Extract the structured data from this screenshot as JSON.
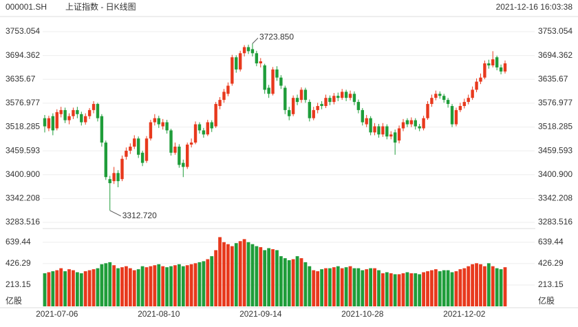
{
  "header": {
    "symbol": "000001.SH",
    "name": "上证指数 - 日K线图",
    "timestamp": "2021-12-16 16:03:38"
  },
  "chart_data": {
    "type": "candlestick",
    "categories": [
      null,
      null,
      null,
      "2021-07-06",
      null,
      null,
      null,
      null,
      null,
      null,
      null,
      null,
      null,
      null,
      null,
      null,
      null,
      null,
      null,
      null,
      null,
      null,
      null,
      null,
      null,
      null,
      null,
      null,
      "2021-08-10",
      null,
      null,
      null,
      null,
      null,
      null,
      null,
      null,
      null,
      null,
      null,
      null,
      null,
      null,
      null,
      null,
      null,
      null,
      null,
      null,
      null,
      null,
      null,
      null,
      "2021-09-14",
      null,
      null,
      null,
      null,
      null,
      null,
      null,
      null,
      null,
      null,
      null,
      null,
      null,
      null,
      null,
      null,
      null,
      null,
      null,
      null,
      null,
      null,
      null,
      null,
      "2021-10-28",
      null,
      null,
      null,
      null,
      null,
      null,
      null,
      null,
      null,
      null,
      null,
      null,
      null,
      null,
      null,
      null,
      null,
      null,
      null,
      null,
      null,
      null,
      null,
      null,
      "2021-12-02",
      null,
      null,
      null,
      null,
      null,
      null,
      null,
      null,
      null,
      null
    ],
    "open": [
      3540,
      3515,
      3545,
      3515,
      3550,
      3560,
      3535,
      3545,
      3560,
      3550,
      3530,
      3545,
      3560,
      3575,
      3545,
      3480,
      3390,
      3385,
      3405,
      3390,
      3445,
      3460,
      3470,
      3490,
      3455,
      3435,
      3490,
      3530,
      3540,
      3520,
      3530,
      3510,
      3455,
      3470,
      3430,
      3420,
      3475,
      3480,
      3525,
      3510,
      3500,
      3530,
      3520,
      3570,
      3585,
      3600,
      3625,
      3690,
      3660,
      3700,
      3715,
      3710,
      3700,
      3675,
      3670,
      3615,
      3600,
      3660,
      3640,
      3615,
      3560,
      3550,
      3590,
      3585,
      3610,
      3580,
      3540,
      3560,
      3575,
      3570,
      3590,
      3580,
      3595,
      3590,
      3605,
      3590,
      3600,
      3580,
      3560,
      3525,
      3540,
      3505,
      3520,
      3500,
      3520,
      3495,
      3505,
      3485,
      3515,
      3535,
      3525,
      3535,
      3520,
      3515,
      3540,
      3575,
      3590,
      3600,
      3595,
      3585,
      3570,
      3525,
      3560,
      3570,
      3580,
      3590,
      3610,
      3630,
      3640,
      3675,
      3670,
      3690,
      3665,
      3655
    ],
    "high": [
      3548,
      3546,
      3552,
      3562,
      3568,
      3566,
      3552,
      3566,
      3568,
      3556,
      3552,
      3565,
      3582,
      3578,
      3550,
      3485,
      3398,
      3420,
      3412,
      3448,
      3468,
      3478,
      3498,
      3495,
      3460,
      3496,
      3536,
      3550,
      3546,
      3538,
      3536,
      3514,
      3480,
      3476,
      3438,
      3480,
      3490,
      3532,
      3530,
      3516,
      3536,
      3535,
      3580,
      3592,
      3612,
      3628,
      3696,
      3695,
      3706,
      3720,
      3721,
      3723.85,
      3706,
      3688,
      3674,
      3622,
      3666,
      3668,
      3646,
      3620,
      3568,
      3596,
      3598,
      3616,
      3615,
      3586,
      3568,
      3578,
      3582,
      3598,
      3596,
      3602,
      3603,
      3612,
      3610,
      3608,
      3606,
      3586,
      3565,
      3548,
      3545,
      3528,
      3526,
      3528,
      3525,
      3508,
      3512,
      3522,
      3538,
      3540,
      3542,
      3540,
      3526,
      3546,
      3582,
      3598,
      3608,
      3606,
      3600,
      3590,
      3575,
      3566,
      3578,
      3588,
      3598,
      3618,
      3638,
      3650,
      3682,
      3684,
      3705,
      3694,
      3672,
      3682
    ],
    "low": [
      3505,
      3508,
      3498,
      3510,
      3542,
      3528,
      3525,
      3538,
      3540,
      3522,
      3524,
      3538,
      3552,
      3532,
      3470,
      3388,
      3312.72,
      3378,
      3370,
      3385,
      3438,
      3452,
      3464,
      3442,
      3422,
      3430,
      3485,
      3522,
      3516,
      3512,
      3502,
      3448,
      3450,
      3418,
      3395,
      3415,
      3468,
      3476,
      3502,
      3492,
      3496,
      3506,
      3516,
      3562,
      3578,
      3594,
      3620,
      3652,
      3655,
      3692,
      3698,
      3692,
      3668,
      3665,
      3600,
      3590,
      3596,
      3632,
      3612,
      3550,
      3535,
      3545,
      3572,
      3578,
      3578,
      3532,
      3535,
      3552,
      3562,
      3565,
      3572,
      3574,
      3582,
      3585,
      3582,
      3584,
      3572,
      3552,
      3522,
      3518,
      3498,
      3498,
      3492,
      3494,
      3488,
      3488,
      3450,
      3478,
      3508,
      3518,
      3518,
      3512,
      3508,
      3510,
      3536,
      3568,
      3584,
      3588,
      3578,
      3566,
      3518,
      3520,
      3555,
      3564,
      3574,
      3585,
      3604,
      3624,
      3636,
      3662,
      3665,
      3658,
      3648,
      3650
    ],
    "close": [
      3520,
      3540,
      3510,
      3555,
      3560,
      3535,
      3545,
      3560,
      3550,
      3530,
      3545,
      3560,
      3575,
      3540,
      3480,
      3395,
      3380,
      3405,
      3385,
      3440,
      3460,
      3470,
      3490,
      3450,
      3430,
      3490,
      3530,
      3540,
      3525,
      3530,
      3510,
      3455,
      3470,
      3425,
      3420,
      3475,
      3480,
      3525,
      3510,
      3500,
      3530,
      3515,
      3575,
      3585,
      3605,
      3620,
      3690,
      3660,
      3700,
      3715,
      3705,
      3700,
      3675,
      3680,
      3610,
      3600,
      3660,
      3640,
      3620,
      3560,
      3545,
      3590,
      3580,
      3610,
      3585,
      3540,
      3560,
      3570,
      3570,
      3590,
      3580,
      3595,
      3590,
      3605,
      3590,
      3600,
      3580,
      3560,
      3530,
      3540,
      3505,
      3520,
      3500,
      3520,
      3495,
      3500,
      3480,
      3515,
      3530,
      3525,
      3535,
      3520,
      3515,
      3540,
      3575,
      3590,
      3600,
      3595,
      3585,
      3575,
      3525,
      3560,
      3570,
      3580,
      3590,
      3610,
      3630,
      3640,
      3675,
      3670,
      3685,
      3665,
      3655,
      3675
    ],
    "volume": [
      330,
      340,
      350,
      360,
      380,
      350,
      370,
      360,
      340,
      330,
      350,
      360,
      370,
      380,
      420,
      430,
      440,
      410,
      380,
      390,
      400,
      380,
      360,
      370,
      400,
      390,
      400,
      410,
      420,
      400,
      390,
      400,
      410,
      420,
      400,
      410,
      420,
      430,
      440,
      450,
      470,
      500,
      560,
      690,
      640,
      620,
      600,
      630,
      650,
      670,
      640,
      620,
      600,
      590,
      560,
      580,
      570,
      560,
      500,
      480,
      460,
      470,
      500,
      480,
      440,
      400,
      360,
      350,
      370,
      380,
      380,
      390,
      400,
      380,
      390,
      400,
      380,
      380,
      360,
      370,
      380,
      380,
      360,
      330,
      340,
      330,
      320,
      320,
      330,
      340,
      330,
      330,
      320,
      340,
      350,
      360,
      370,
      350,
      360,
      360,
      340,
      350,
      370,
      380,
      400,
      420,
      430,
      420,
      400,
      430,
      400,
      380,
      370,
      390
    ],
    "up_color": "#e8391d",
    "down_color": "#1f9d3a",
    "ylim": [
      3283.516,
      3753.054
    ],
    "yticks": [
      3283.516,
      3342.208,
      {
        "value": 3400.9,
        "label": "3400.900"
      },
      3459.593,
      3518.285,
      3576.977,
      3635.67,
      3694.362,
      3753.054
    ],
    "volume_ylim": [
      0,
      700
    ],
    "volume_yticks": [
      213.15,
      426.29,
      639.44
    ],
    "volume_unit": "亿股",
    "annotations": [
      {
        "label": "3723.850"
      },
      {
        "label": "3312.720"
      }
    ],
    "grid": true
  }
}
